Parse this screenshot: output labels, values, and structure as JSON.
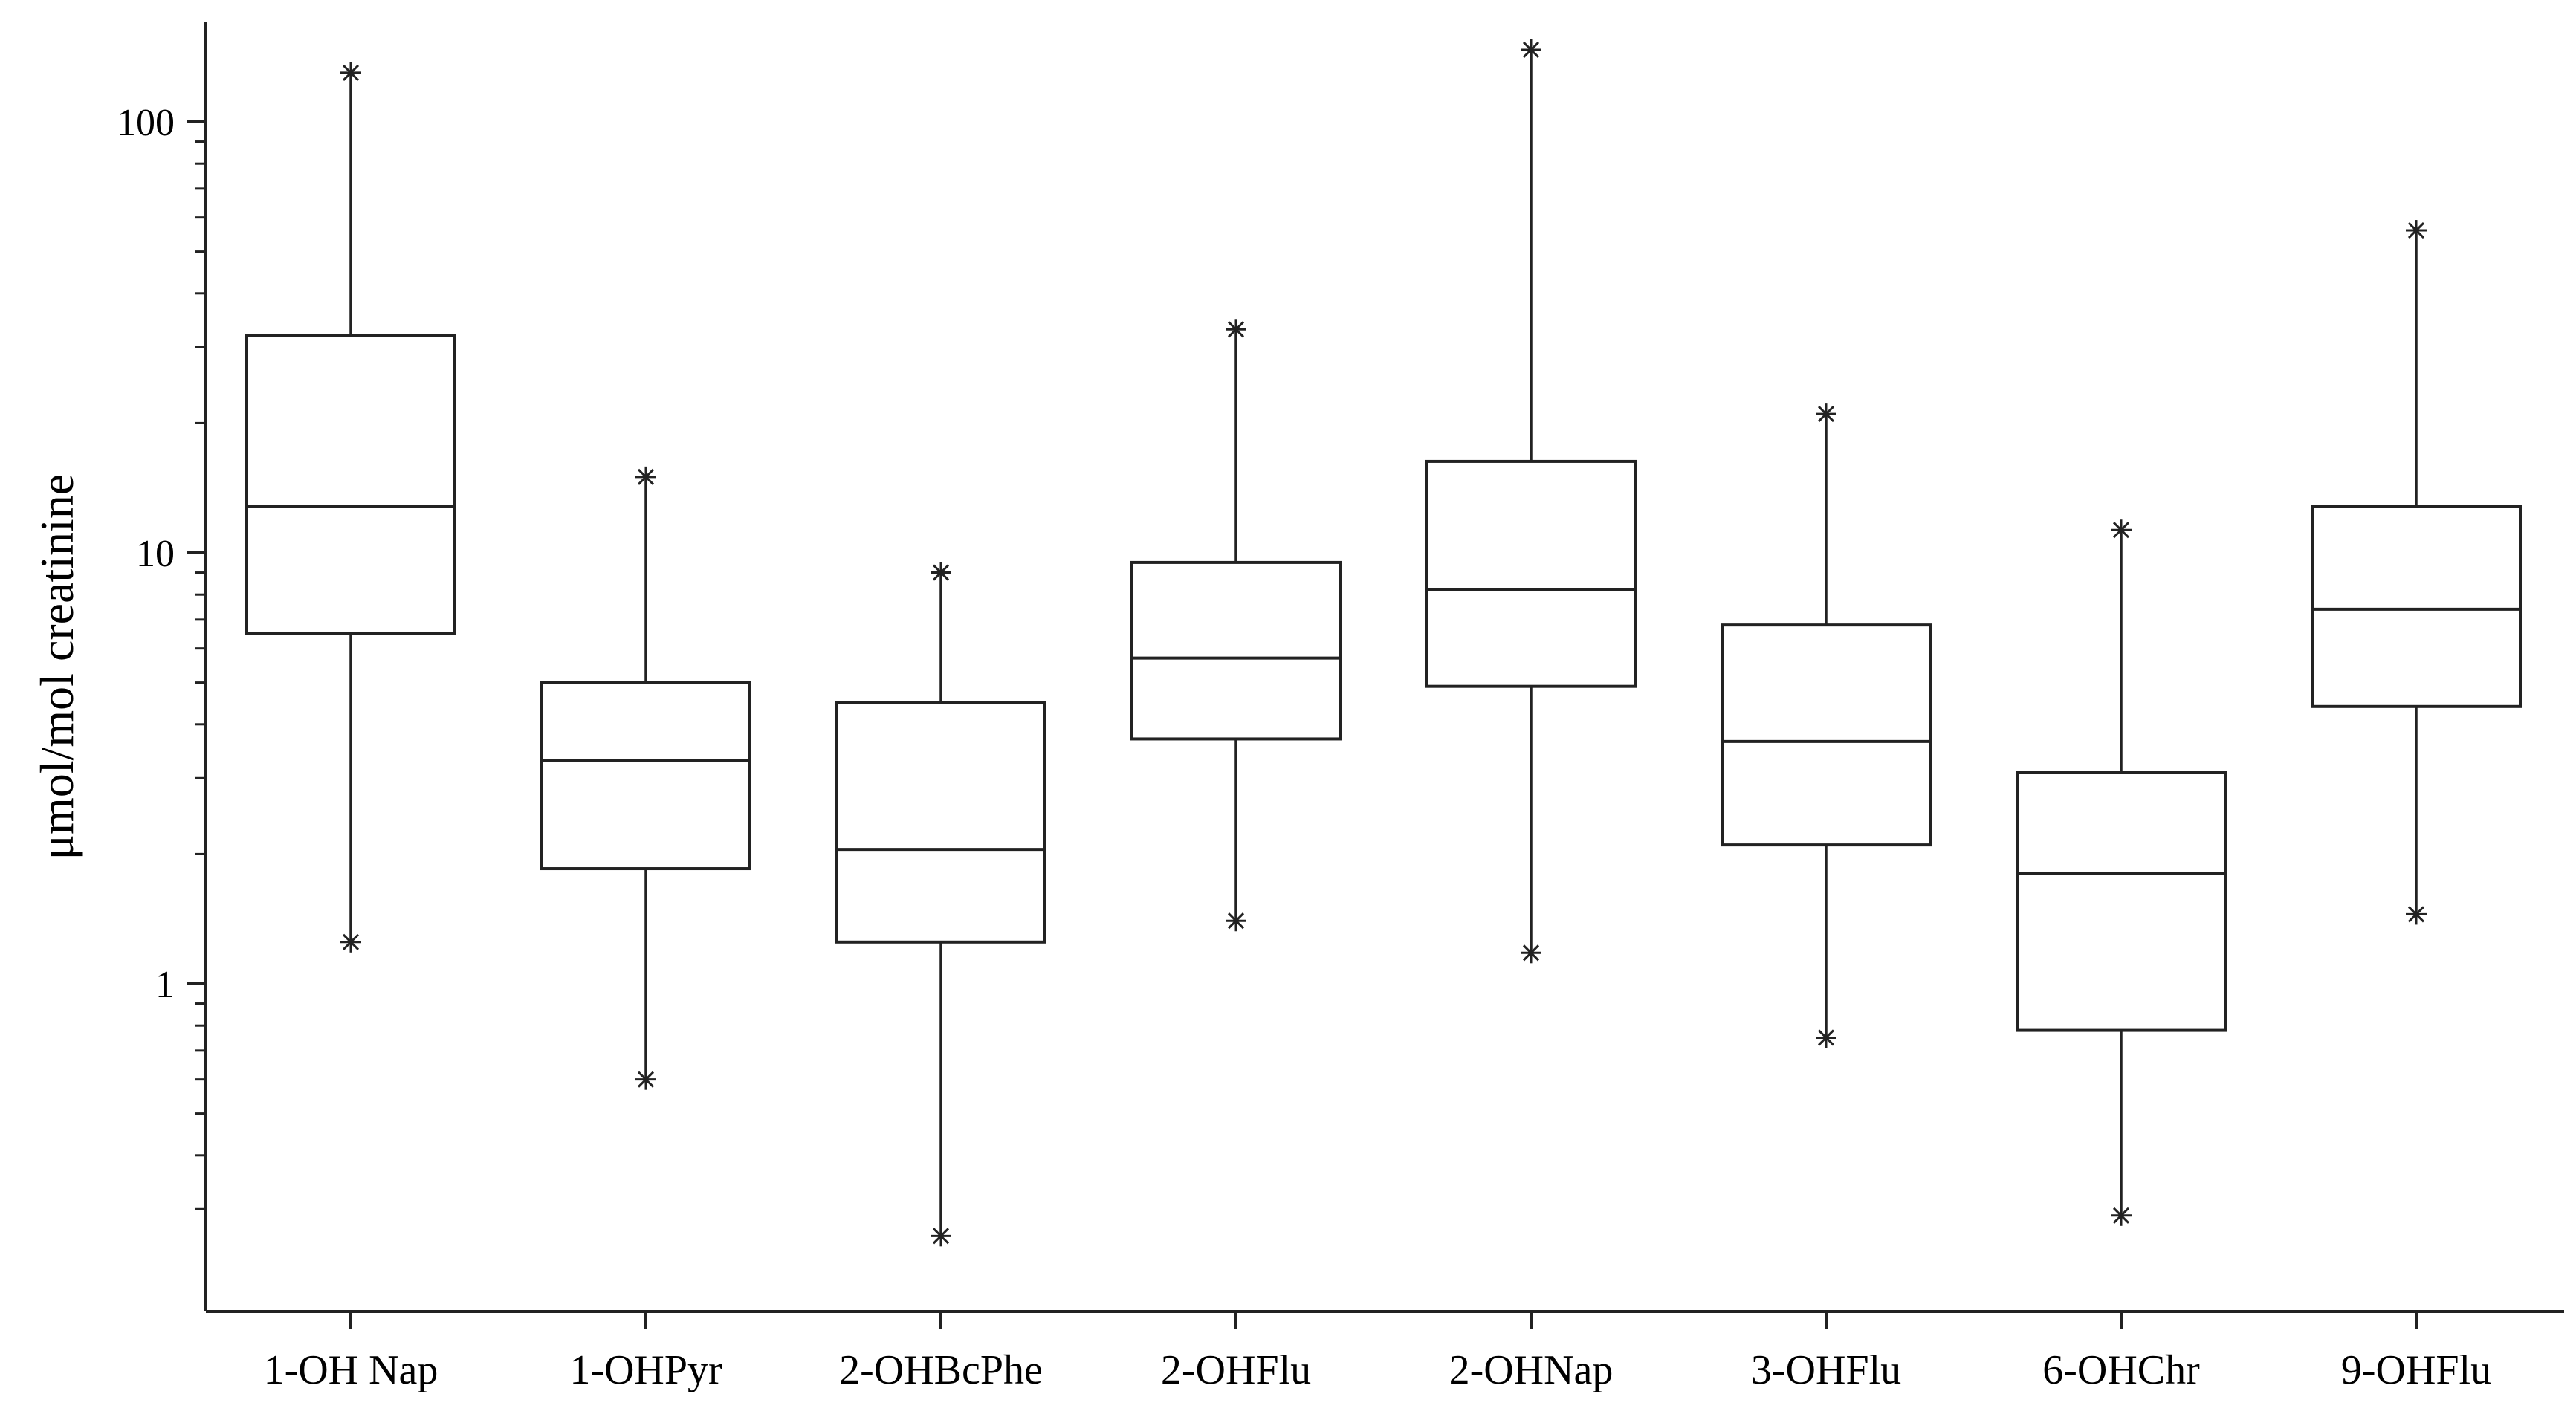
{
  "chart_data": {
    "type": "box",
    "categories": [
      "1-OH Nap",
      "1-OHPyr",
      "2-OHBcPhe",
      "2-OHFlu",
      "2-OHNap",
      "3-OHFlu",
      "6-OHChr",
      "9-OHFlu"
    ],
    "boxes": [
      {
        "whisker_low": 1.25,
        "q1": 6.5,
        "median": 12.8,
        "q3": 32,
        "whisker_high": 130
      },
      {
        "whisker_low": 0.6,
        "q1": 1.85,
        "median": 3.3,
        "q3": 5.0,
        "whisker_high": 15
      },
      {
        "whisker_low": 0.26,
        "q1": 1.25,
        "median": 2.05,
        "q3": 4.5,
        "whisker_high": 9.0
      },
      {
        "whisker_low": 1.4,
        "q1": 3.7,
        "median": 5.7,
        "q3": 9.5,
        "whisker_high": 33
      },
      {
        "whisker_low": 1.18,
        "q1": 4.9,
        "median": 8.2,
        "q3": 16.3,
        "whisker_high": 147
      },
      {
        "whisker_low": 0.75,
        "q1": 2.1,
        "median": 3.65,
        "q3": 6.8,
        "whisker_high": 21
      },
      {
        "whisker_low": 0.29,
        "q1": 0.78,
        "median": 1.8,
        "q3": 3.1,
        "whisker_high": 11.3
      },
      {
        "whisker_low": 1.45,
        "q1": 4.4,
        "median": 7.4,
        "q3": 12.8,
        "whisker_high": 56
      }
    ],
    "ylabel": "μmol/mol creatinine",
    "xlabel": "",
    "title": "",
    "yscale": "log",
    "ylim": [
      0.2,
      180
    ],
    "y_major_ticks": [
      1,
      10,
      100
    ],
    "y_tick_labels": [
      "1",
      "10",
      "100"
    ],
    "y_minor_ticks": [
      0.3,
      0.4,
      0.5,
      0.6,
      0.7,
      0.8,
      0.9,
      2,
      3,
      4,
      5,
      6,
      7,
      8,
      9,
      20,
      30,
      40,
      50,
      60,
      70,
      80,
      90
    ],
    "grid": false,
    "legend": "none",
    "colors": {
      "stroke": "#222222",
      "box_fill": "#ffffff",
      "background": "#ffffff"
    }
  }
}
